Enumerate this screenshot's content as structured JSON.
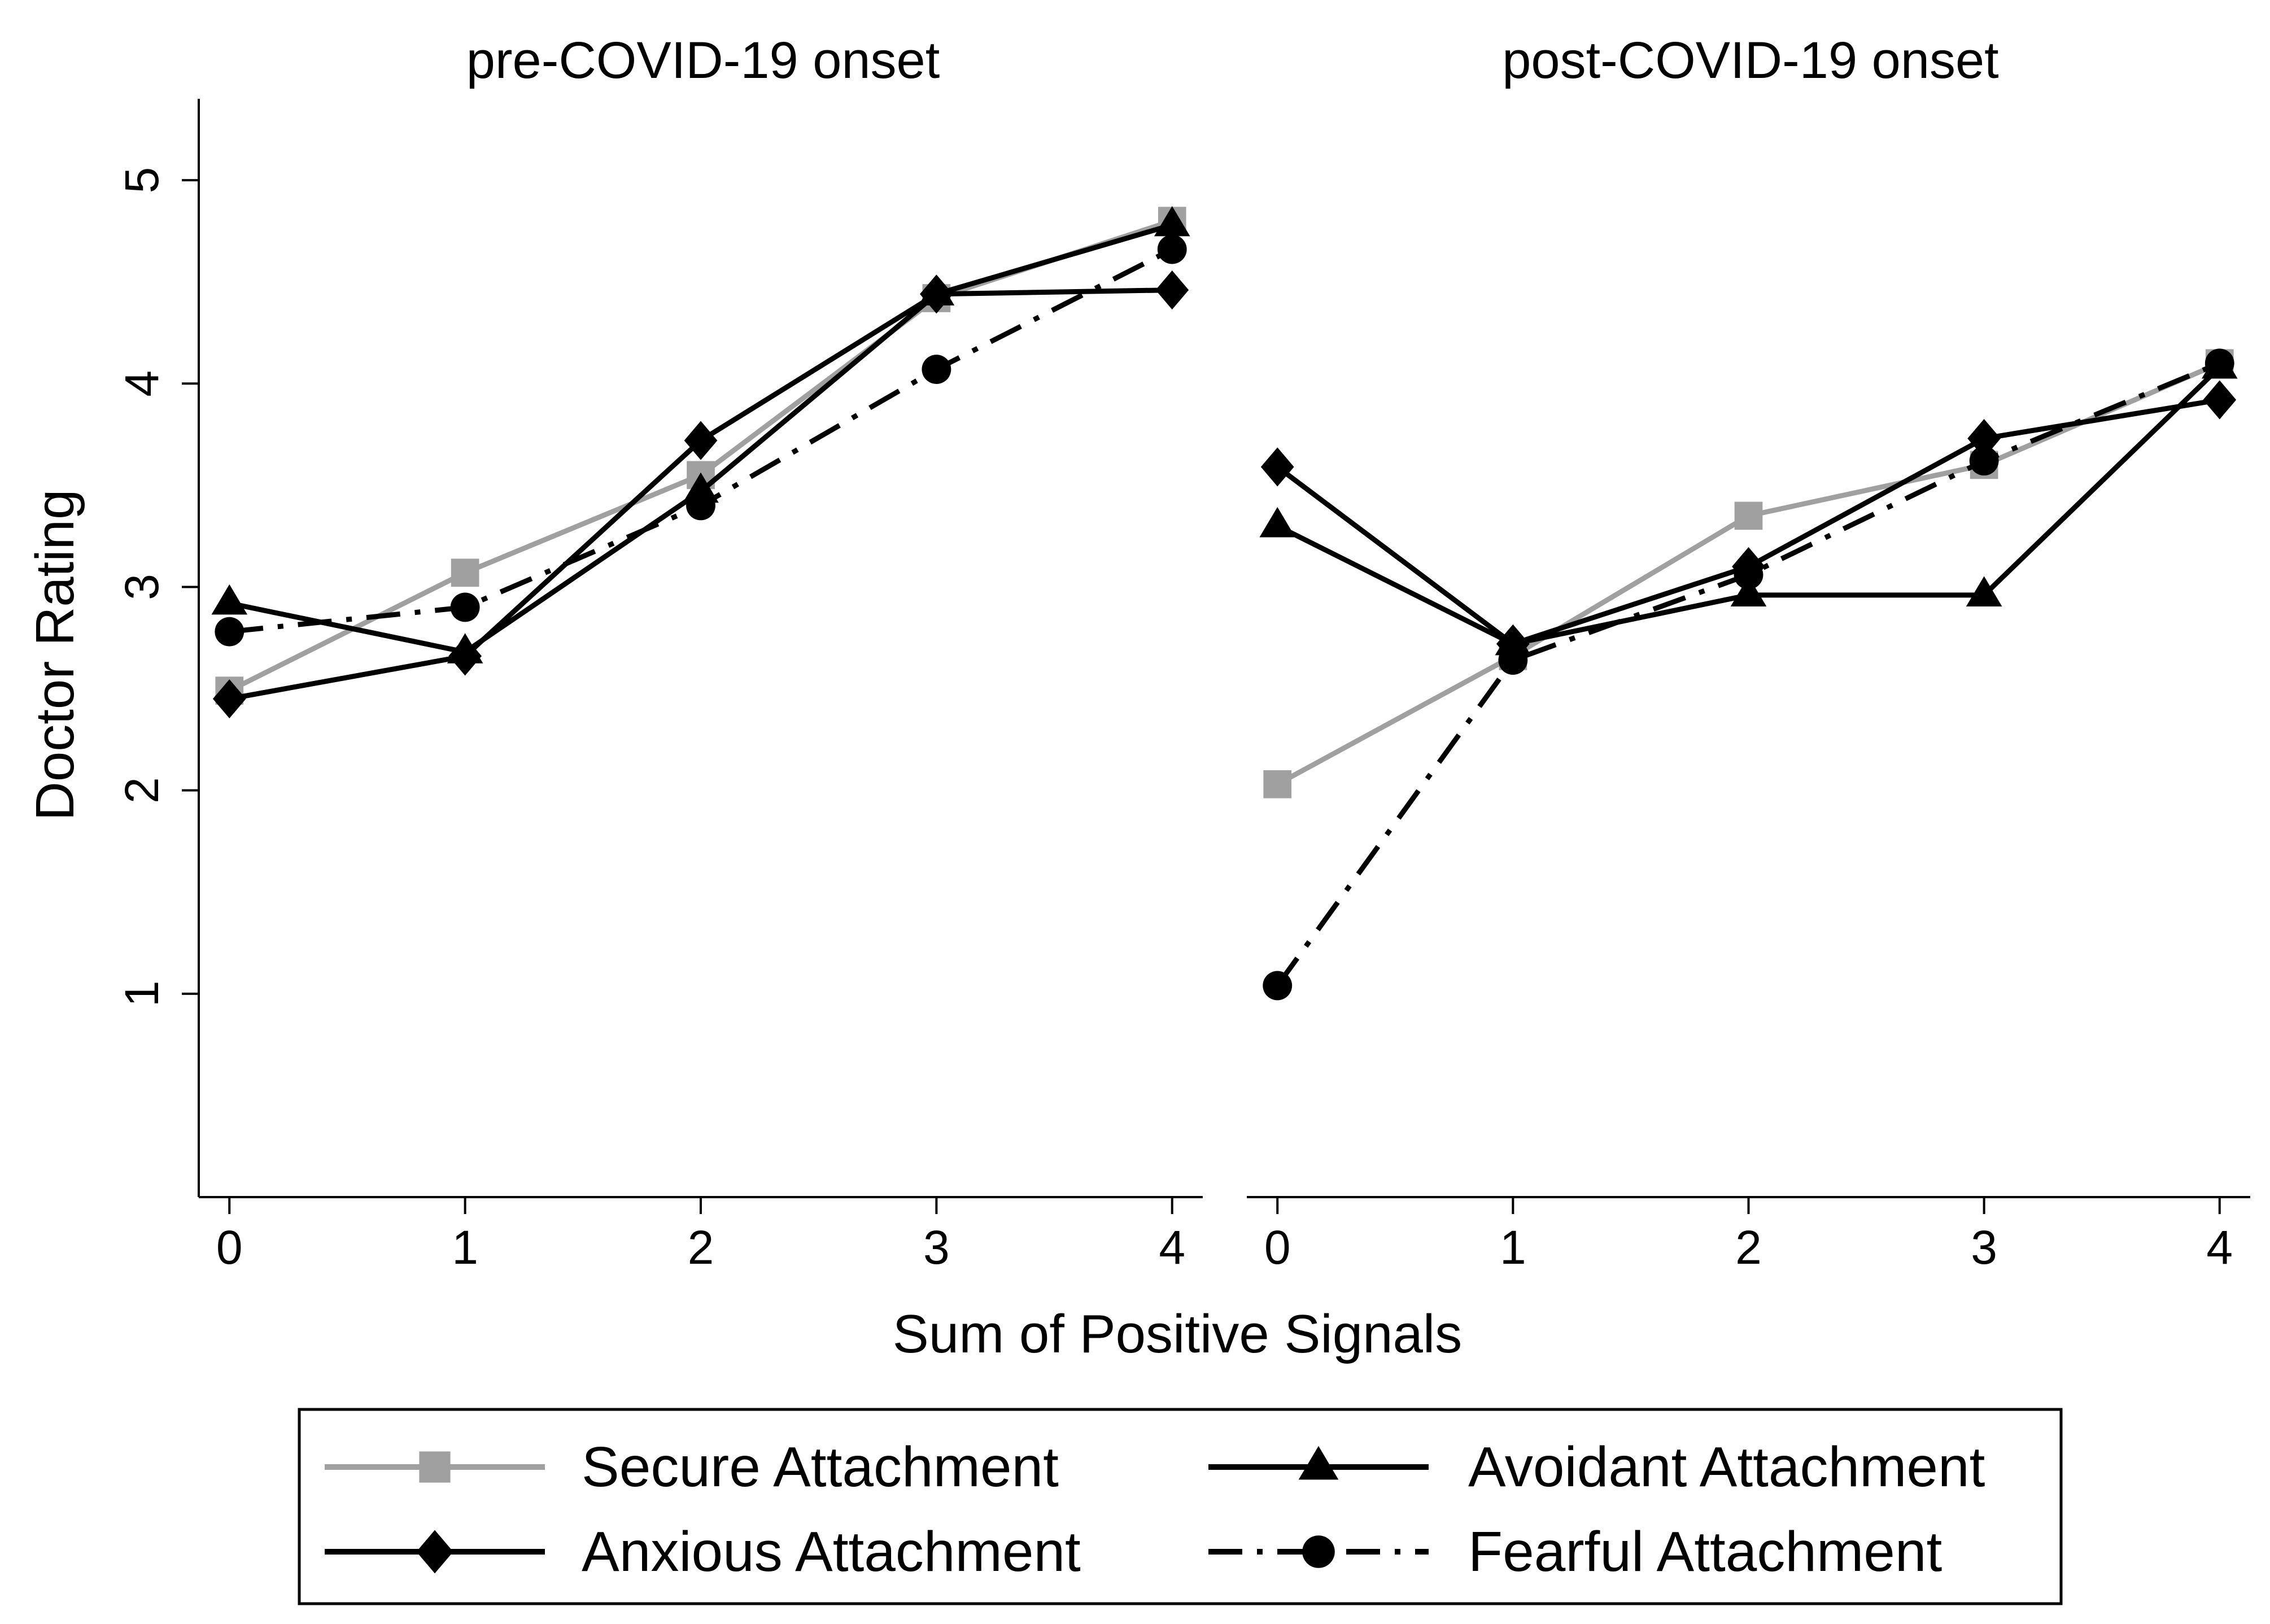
{
  "chart_data": {
    "type": "line",
    "ylabel": "Doctor Rating",
    "xlabel": "Sum of Positive Signals",
    "ylim": [
      0.0,
      5.4
    ],
    "yticks": [
      1,
      2,
      3,
      4,
      5
    ],
    "xlim": [
      -0.13,
      4.13
    ],
    "xticks": [
      0,
      1,
      2,
      3,
      4
    ],
    "grid": false,
    "legend_position": "bottom",
    "series_styles": {
      "secure": {
        "name": "Secure Attachment",
        "color": "#a0a0a0",
        "marker": "square",
        "dash": "solid"
      },
      "avoidant": {
        "name": "Avoidant Attachment",
        "color": "#000000",
        "marker": "triangle",
        "dash": "solid"
      },
      "anxious": {
        "name": "Anxious Attachment",
        "color": "#000000",
        "marker": "diamond",
        "dash": "solid"
      },
      "fearful": {
        "name": "Fearful Attachment",
        "color": "#000000",
        "marker": "circle",
        "dash": "dashdot"
      }
    },
    "legend_order": [
      "secure",
      "avoidant",
      "anxious",
      "fearful"
    ],
    "panels": [
      {
        "title": "pre-COVID-19 onset",
        "x": [
          0,
          1,
          2,
          3,
          4
        ],
        "series": [
          {
            "key": "secure",
            "values": [
              2.49,
              3.07,
              3.55,
              4.42,
              4.8
            ]
          },
          {
            "key": "fearful",
            "values": [
              2.78,
              2.9,
              3.4,
              4.07,
              4.66
            ]
          },
          {
            "key": "avoidant",
            "values": [
              2.92,
              2.68,
              3.47,
              4.44,
              4.78
            ]
          },
          {
            "key": "anxious",
            "values": [
              2.45,
              2.66,
              3.72,
              4.44,
              4.46
            ]
          }
        ]
      },
      {
        "title": "post-COVID-19 onset",
        "x": [
          0,
          1,
          2,
          3,
          4
        ],
        "series": [
          {
            "key": "secure",
            "values": [
              2.03,
              2.66,
              3.35,
              3.6,
              4.1
            ]
          },
          {
            "key": "fearful",
            "values": [
              1.04,
              2.64,
              3.06,
              3.62,
              4.1
            ]
          },
          {
            "key": "avoidant",
            "values": [
              3.3,
              2.72,
              2.96,
              2.96,
              4.08
            ]
          },
          {
            "key": "anxious",
            "values": [
              3.59,
              2.72,
              3.1,
              3.73,
              3.92
            ]
          }
        ]
      }
    ]
  }
}
